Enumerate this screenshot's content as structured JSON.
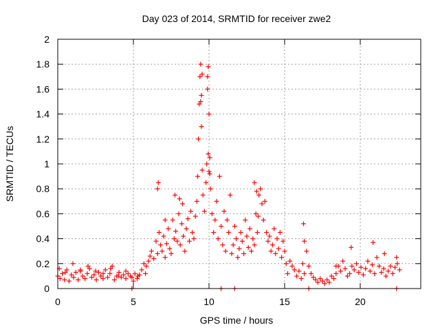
{
  "chart_data": {
    "type": "scatter",
    "title": "Day 023 of 2014, SRMTID for receiver zwe2",
    "xlabel": "GPS time / hours",
    "ylabel": "SRMTID / TECUs",
    "xlim": [
      0,
      24
    ],
    "ylim": [
      0,
      2
    ],
    "grid": true,
    "legend": "none",
    "marker": "+",
    "colors": {
      "points": "#ff0000",
      "grid": "#a0a0a0",
      "axes": "#000000"
    },
    "xticks": [
      {
        "value": 0,
        "label": "0"
      },
      {
        "value": 5,
        "label": "5"
      },
      {
        "value": 10,
        "label": "10"
      },
      {
        "value": 15,
        "label": "15"
      },
      {
        "value": 20,
        "label": "20"
      }
    ],
    "yticks": [
      {
        "value": 0,
        "label": "0"
      },
      {
        "value": 0.2,
        "label": "0.2"
      },
      {
        "value": 0.4,
        "label": "0.4"
      },
      {
        "value": 0.6,
        "label": "0.6"
      },
      {
        "value": 0.8,
        "label": "0.8"
      },
      {
        "value": 1.0,
        "label": "1"
      },
      {
        "value": 1.2,
        "label": "1.2"
      },
      {
        "value": 1.4,
        "label": "1.4"
      },
      {
        "value": 1.6,
        "label": "1.6"
      },
      {
        "value": 1.8,
        "label": "1.8"
      },
      {
        "value": 2.0,
        "label": "2"
      }
    ],
    "series": [
      {
        "name": "SRMTID zwe2",
        "x": [
          0.0,
          0.15,
          0.3,
          0.45,
          0.6,
          0.75,
          0.9,
          1.05,
          1.2,
          1.35,
          1.5,
          1.65,
          1.8,
          1.95,
          2.1,
          2.25,
          2.4,
          2.55,
          2.7,
          2.85,
          3.0,
          3.15,
          3.3,
          3.45,
          3.6,
          3.75,
          3.9,
          4.05,
          4.2,
          4.35,
          4.5,
          4.65,
          4.8,
          4.9,
          5.0,
          5.1,
          5.25,
          5.4,
          5.55,
          5.7,
          5.85,
          6.0,
          6.1,
          6.2,
          6.35,
          6.5,
          6.6,
          6.7,
          6.8,
          6.9,
          7.0,
          7.1,
          7.2,
          7.3,
          7.4,
          7.5,
          7.6,
          7.7,
          7.8,
          7.9,
          8.0,
          8.1,
          8.2,
          8.3,
          8.4,
          8.5,
          8.6,
          8.7,
          8.8,
          8.9,
          9.0,
          9.1,
          9.2,
          9.25,
          9.3,
          9.35,
          9.4,
          9.45,
          9.5,
          9.55,
          9.6,
          9.7,
          9.8,
          9.85,
          9.9,
          9.95,
          10.0,
          10.05,
          10.1,
          10.2,
          10.3,
          10.4,
          10.5,
          10.6,
          10.7,
          10.8,
          10.9,
          11.0,
          11.1,
          11.2,
          11.3,
          11.4,
          11.5,
          11.6,
          11.7,
          11.8,
          11.9,
          12.0,
          12.1,
          12.2,
          12.3,
          12.4,
          12.5,
          12.6,
          12.7,
          12.8,
          12.9,
          13.0,
          13.1,
          13.2,
          13.3,
          13.4,
          13.5,
          13.6,
          13.7,
          13.8,
          13.9,
          14.0,
          14.1,
          14.2,
          14.3,
          14.4,
          14.5,
          14.6,
          14.7,
          14.8,
          14.9,
          15.0,
          15.1,
          15.2,
          15.35,
          15.5,
          15.65,
          15.8,
          15.95,
          16.1,
          16.2,
          16.3,
          16.45,
          16.6,
          16.75,
          16.9,
          17.05,
          17.2,
          17.35,
          17.5,
          17.65,
          17.8,
          17.95,
          18.1,
          18.25,
          18.4,
          18.55,
          18.7,
          18.85,
          19.0,
          19.15,
          19.3,
          19.45,
          19.6,
          19.75,
          19.9,
          20.05,
          20.2,
          20.35,
          20.5,
          20.65,
          20.8,
          20.95,
          21.1,
          21.25,
          21.4,
          21.55,
          21.7,
          21.85,
          22.0,
          22.15,
          22.3,
          22.45,
          22.6,
          0.1,
          0.5,
          1.0,
          1.5,
          2.0,
          2.5,
          3.0,
          3.5,
          4.0,
          4.5,
          5.3,
          5.8,
          6.6,
          6.65,
          7.1,
          7.75,
          8.05,
          8.25,
          9.45,
          9.5,
          9.55,
          9.9,
          9.95,
          10.0,
          10.05,
          13.0,
          13.15,
          13.25,
          16.25,
          16.3,
          18.4,
          19.4,
          20.85,
          21.6,
          22.4,
          4.9,
          10.8,
          11.7,
          16.6,
          22.4
        ],
        "y": [
          0.1,
          0.08,
          0.12,
          0.07,
          0.15,
          0.06,
          0.11,
          0.09,
          0.13,
          0.07,
          0.14,
          0.1,
          0.08,
          0.12,
          0.16,
          0.09,
          0.11,
          0.07,
          0.13,
          0.1,
          0.08,
          0.15,
          0.09,
          0.12,
          0.18,
          0.07,
          0.1,
          0.13,
          0.09,
          0.11,
          0.08,
          0.12,
          0.1,
          0.09,
          0.06,
          0.12,
          0.08,
          0.11,
          0.15,
          0.2,
          0.18,
          0.22,
          0.26,
          0.3,
          0.24,
          0.38,
          0.28,
          0.45,
          0.35,
          0.3,
          0.42,
          0.25,
          0.36,
          0.48,
          0.32,
          0.28,
          0.55,
          0.4,
          0.46,
          0.38,
          0.6,
          0.35,
          0.52,
          0.42,
          0.3,
          0.48,
          0.56,
          0.38,
          0.62,
          0.45,
          0.4,
          0.58,
          0.7,
          0.9,
          1.2,
          1.48,
          1.7,
          1.8,
          1.3,
          0.95,
          0.75,
          0.62,
          0.85,
          1.0,
          1.6,
          1.78,
          1.4,
          1.05,
          0.8,
          0.6,
          0.45,
          0.55,
          0.7,
          0.4,
          0.9,
          0.5,
          0.35,
          0.62,
          0.3,
          0.55,
          0.45,
          0.75,
          0.28,
          0.35,
          0.5,
          0.4,
          0.25,
          0.32,
          0.45,
          0.38,
          0.28,
          0.55,
          0.42,
          0.33,
          0.48,
          0.3,
          0.4,
          0.35,
          0.6,
          0.45,
          0.75,
          0.8,
          0.68,
          0.55,
          0.7,
          0.45,
          0.38,
          0.42,
          0.3,
          0.35,
          0.48,
          0.28,
          0.4,
          0.32,
          0.45,
          0.25,
          0.38,
          0.3,
          0.2,
          0.12,
          0.22,
          0.18,
          0.15,
          0.1,
          0.14,
          0.08,
          0.2,
          0.38,
          0.3,
          0.18,
          0.12,
          0.09,
          0.07,
          0.05,
          0.08,
          0.06,
          0.04,
          0.07,
          0.05,
          0.1,
          0.08,
          0.12,
          0.18,
          0.14,
          0.22,
          0.16,
          0.1,
          0.12,
          0.18,
          0.15,
          0.2,
          0.13,
          0.17,
          0.11,
          0.16,
          0.22,
          0.14,
          0.19,
          0.12,
          0.25,
          0.18,
          0.13,
          0.16,
          0.1,
          0.14,
          0.18,
          0.12,
          0.17,
          0.2,
          0.15,
          0.16,
          0.13,
          0.2,
          0.15,
          0.18,
          0.14,
          0.12,
          0.16,
          0.1,
          0.14,
          0.1,
          0.12,
          0.8,
          0.85,
          0.55,
          0.75,
          0.72,
          0.68,
          1.5,
          1.55,
          1.72,
          1.7,
          1.08,
          0.94,
          0.92,
          0.85,
          0.78,
          0.58,
          0.52,
          0.12,
          0.18,
          0.33,
          0.37,
          0.28,
          0.25,
          0.0,
          0.0,
          0.0,
          0.0,
          0.0
        ]
      }
    ]
  }
}
